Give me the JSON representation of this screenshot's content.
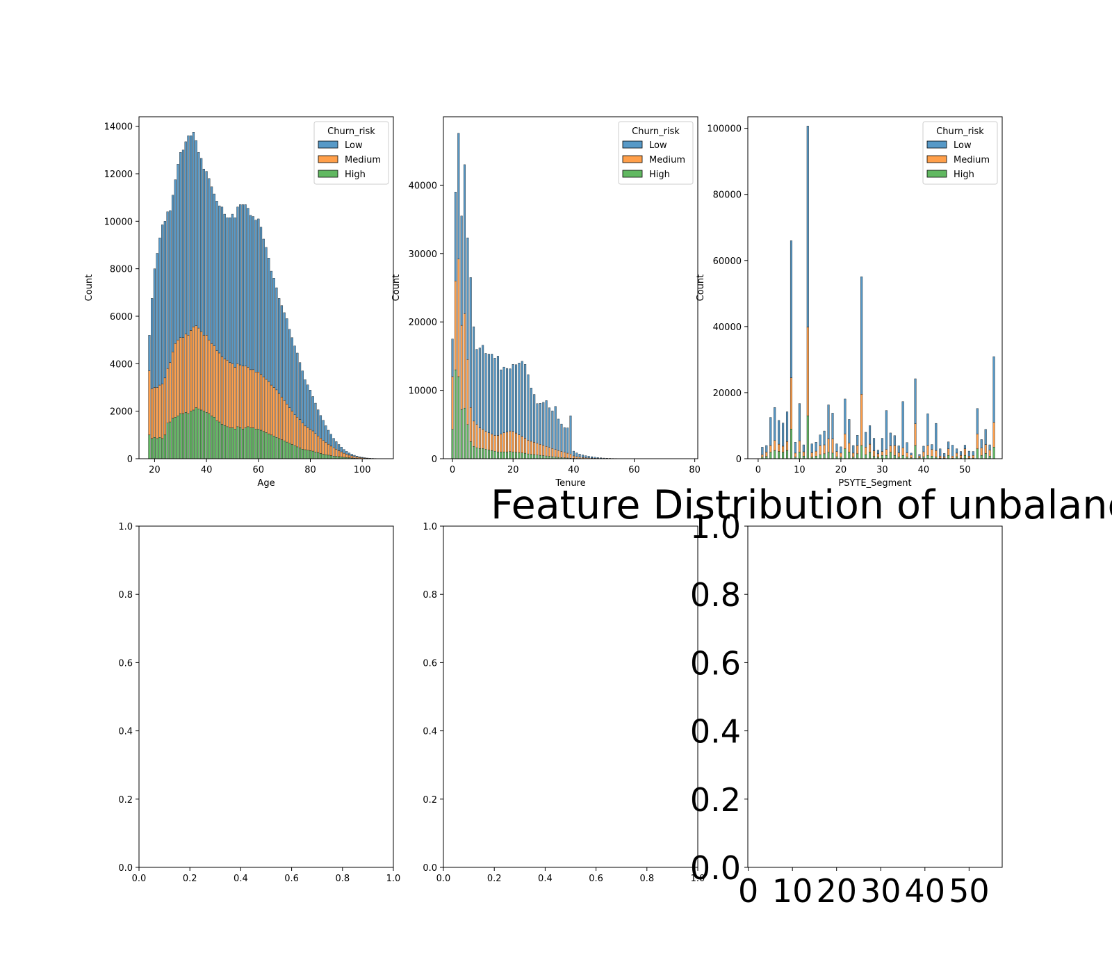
{
  "figure": {
    "suptitle": "Feature Distribution of unbalanc"
  },
  "colors": {
    "Low": "#1f77b4",
    "Medium": "#ff7f0e",
    "High": "#2ca02c"
  },
  "chart_data": [
    {
      "type": "bar",
      "stacked": true,
      "xlabel": "Age",
      "ylabel": "Count",
      "xlim": [
        14,
        112
      ],
      "ylim": [
        0,
        14400
      ],
      "xticks": [
        20,
        40,
        60,
        80,
        100
      ],
      "yticks": [
        0,
        2000,
        4000,
        6000,
        8000,
        10000,
        12000,
        14000
      ],
      "legend": {
        "title": "Churn_risk",
        "entries": [
          "Low",
          "Medium",
          "High"
        ],
        "placement": "upper right"
      },
      "bar_width": 0.75,
      "x": [
        18,
        19,
        20,
        21,
        22,
        23,
        24,
        25,
        26,
        27,
        28,
        29,
        30,
        31,
        32,
        33,
        34,
        35,
        36,
        37,
        38,
        39,
        40,
        41,
        42,
        43,
        44,
        45,
        46,
        47,
        48,
        49,
        50,
        51,
        52,
        53,
        54,
        55,
        56,
        57,
        58,
        59,
        60,
        61,
        62,
        63,
        64,
        65,
        66,
        67,
        68,
        69,
        70,
        71,
        72,
        73,
        74,
        75,
        76,
        77,
        78,
        79,
        80,
        81,
        82,
        83,
        84,
        85,
        86,
        87,
        88,
        89,
        90,
        91,
        92,
        93,
        94,
        95,
        96,
        97,
        98,
        99,
        100,
        101,
        102,
        103,
        104,
        105,
        106,
        107,
        108
      ],
      "series": [
        {
          "name": "High",
          "values": [
            1000,
            850,
            900,
            850,
            900,
            850,
            1000,
            1500,
            1550,
            1700,
            1750,
            1800,
            1900,
            1900,
            1950,
            1900,
            2000,
            2050,
            2150,
            2100,
            2050,
            2000,
            1950,
            1900,
            1800,
            1750,
            1600,
            1550,
            1450,
            1400,
            1350,
            1300,
            1300,
            1250,
            1350,
            1300,
            1250,
            1300,
            1350,
            1300,
            1300,
            1250,
            1250,
            1200,
            1150,
            1100,
            1050,
            1000,
            950,
            900,
            850,
            800,
            750,
            700,
            650,
            600,
            550,
            500,
            450,
            400,
            380,
            360,
            340,
            320,
            280,
            260,
            220,
            190,
            170,
            150,
            130,
            110,
            100,
            90,
            80,
            60,
            50,
            40,
            30,
            20,
            15,
            10,
            8,
            5,
            4,
            3,
            2,
            2,
            1,
            1,
            1
          ]
        },
        {
          "name": "Medium",
          "values": [
            2700,
            2100,
            2100,
            2150,
            2200,
            2300,
            2400,
            2300,
            2500,
            2800,
            3100,
            3200,
            3200,
            3200,
            3300,
            3300,
            3400,
            3500,
            3450,
            3400,
            3300,
            3200,
            3250,
            3100,
            3050,
            3000,
            2950,
            2900,
            2850,
            2800,
            2800,
            2750,
            2700,
            2600,
            2650,
            2650,
            2650,
            2600,
            2500,
            2450,
            2450,
            2400,
            2400,
            2350,
            2300,
            2250,
            2200,
            2100,
            2050,
            2000,
            1900,
            1800,
            1700,
            1600,
            1500,
            1400,
            1300,
            1250,
            1200,
            1100,
            1000,
            950,
            900,
            850,
            780,
            700,
            650,
            580,
            520,
            460,
            400,
            350,
            300,
            250,
            210,
            170,
            140,
            110,
            90,
            70,
            55,
            40,
            30,
            22,
            15,
            10,
            8,
            6,
            4,
            3,
            2
          ]
        },
        {
          "name": "Low",
          "values": [
            1500,
            3800,
            5000,
            5650,
            6200,
            6700,
            6600,
            6600,
            6400,
            6600,
            6900,
            7400,
            7800,
            7900,
            8100,
            8400,
            8200,
            8200,
            7800,
            7400,
            7300,
            7000,
            6900,
            6800,
            6600,
            6400,
            6300,
            6200,
            6300,
            6100,
            6000,
            6100,
            6300,
            6300,
            6600,
            6750,
            6800,
            6800,
            6700,
            6500,
            6450,
            6400,
            6450,
            6200,
            5800,
            5550,
            5200,
            4800,
            4600,
            4300,
            4000,
            3850,
            3700,
            3600,
            3300,
            3100,
            2900,
            2700,
            2400,
            2200,
            1950,
            1800,
            1650,
            1450,
            1280,
            1100,
            950,
            850,
            700,
            590,
            500,
            400,
            320,
            260,
            200,
            160,
            120,
            90,
            70,
            55,
            40,
            30,
            22,
            15,
            10,
            7,
            5,
            3,
            2,
            1,
            1
          ]
        }
      ]
    },
    {
      "type": "bar",
      "stacked": true,
      "xlabel": "Tenure",
      "ylabel": "Count",
      "xlim": [
        -3,
        81
      ],
      "ylim": [
        0,
        50000
      ],
      "xticks": [
        0,
        20,
        40,
        60,
        80
      ],
      "yticks": [
        0,
        10000,
        20000,
        30000,
        40000
      ],
      "legend": {
        "title": "Churn_risk",
        "entries": [
          "Low",
          "Medium",
          "High"
        ],
        "placement": "upper right"
      },
      "bar_width": 0.6,
      "x": [
        0,
        1,
        2,
        3,
        4,
        5,
        6,
        7,
        8,
        9,
        10,
        11,
        12,
        13,
        14,
        15,
        16,
        17,
        18,
        19,
        20,
        21,
        22,
        23,
        24,
        25,
        26,
        27,
        28,
        29,
        30,
        31,
        32,
        33,
        34,
        35,
        36,
        37,
        38,
        39,
        40,
        41,
        42,
        43,
        44,
        45,
        46,
        47,
        48,
        49,
        50,
        51,
        52,
        53,
        54,
        55,
        56,
        57,
        58,
        59,
        60,
        61,
        62,
        63,
        64,
        65,
        66,
        67,
        68,
        69,
        70,
        71,
        72,
        73,
        74,
        75,
        76,
        77,
        78
      ],
      "series": [
        {
          "name": "High",
          "values": [
            4300,
            13000,
            12000,
            7200,
            7400,
            5000,
            2500,
            1800,
            1600,
            1500,
            1500,
            1400,
            1300,
            1200,
            1100,
            1000,
            1000,
            1000,
            1000,
            1050,
            1000,
            950,
            900,
            850,
            800,
            700,
            650,
            600,
            550,
            500,
            450,
            400,
            350,
            300,
            250,
            200,
            170,
            140,
            110,
            80,
            60,
            50,
            40,
            30,
            25,
            20,
            15,
            12,
            10,
            8,
            6,
            5,
            4,
            3,
            3,
            2,
            2,
            2,
            1,
            1,
            1,
            1,
            1,
            1,
            1,
            1,
            1,
            1,
            1,
            1,
            1,
            1,
            1,
            1,
            1,
            1,
            1,
            1,
            1
          ]
        },
        {
          "name": "Medium",
          "values": [
            7700,
            13000,
            17200,
            12300,
            13800,
            9500,
            5000,
            3700,
            3400,
            3000,
            2800,
            2600,
            2500,
            2400,
            2300,
            2400,
            2600,
            2800,
            2900,
            3000,
            3000,
            2800,
            2600,
            2400,
            2200,
            2000,
            1900,
            1800,
            1700,
            1600,
            1500,
            1400,
            1300,
            1200,
            1100,
            1000,
            900,
            800,
            700,
            600,
            350,
            250,
            200,
            150,
            120,
            100,
            80,
            60,
            50,
            40,
            30,
            25,
            20,
            15,
            12,
            10,
            8,
            6,
            5,
            4,
            3,
            3,
            2,
            2,
            2,
            1,
            1,
            1,
            1,
            1,
            1,
            1,
            1,
            1,
            1,
            1,
            1,
            1,
            1
          ]
        },
        {
          "name": "Low",
          "values": [
            5500,
            13000,
            18400,
            16000,
            21800,
            17800,
            19000,
            13800,
            11000,
            11700,
            12300,
            11400,
            11500,
            11700,
            11300,
            11600,
            9400,
            9600,
            9300,
            9100,
            9800,
            10000,
            10500,
            11000,
            10800,
            9600,
            7800,
            7000,
            5800,
            6000,
            6300,
            6700,
            5800,
            5500,
            6300,
            4600,
            4000,
            3600,
            3700,
            5600,
            700,
            550,
            450,
            370,
            300,
            250,
            200,
            150,
            110,
            80,
            60,
            45,
            35,
            25,
            20,
            15,
            12,
            10,
            8,
            6,
            5,
            4,
            3,
            3,
            2,
            2,
            2,
            1,
            1,
            1,
            1,
            1,
            1,
            1,
            1,
            1,
            1,
            1,
            1
          ]
        }
      ]
    },
    {
      "type": "bar",
      "stacked": true,
      "xlabel": "PSYTE_Segment",
      "ylabel": "Count",
      "xlim": [
        -2.5,
        59
      ],
      "ylim": [
        0,
        103500
      ],
      "xticks": [
        0,
        10,
        20,
        30,
        40,
        50
      ],
      "yticks": [
        0,
        20000,
        40000,
        60000,
        80000,
        100000
      ],
      "legend": {
        "title": "Churn_risk",
        "entries": [
          "Low",
          "Medium",
          "High"
        ],
        "placement": "upper right"
      },
      "bar_width": 0.45,
      "x": [
        1,
        2,
        3,
        4,
        5,
        6,
        7,
        8,
        9,
        10,
        11,
        12,
        13,
        14,
        15,
        16,
        17,
        18,
        19,
        20,
        21,
        22,
        23,
        24,
        25,
        26,
        27,
        28,
        29,
        30,
        31,
        32,
        33,
        34,
        35,
        36,
        37,
        38,
        39,
        40,
        41,
        42,
        43,
        44,
        45,
        46,
        47,
        48,
        49,
        50,
        51,
        52,
        53,
        54,
        55,
        56,
        57
      ],
      "series": [
        {
          "name": "High",
          "values": [
            500,
            700,
            2000,
            2500,
            2200,
            2000,
            2500,
            9000,
            500,
            2000,
            800,
            13000,
            500,
            800,
            1200,
            1500,
            2000,
            1700,
            600,
            500,
            3000,
            2000,
            500,
            1500,
            4000,
            1200,
            2000,
            700,
            500,
            1000,
            1000,
            2000,
            1000,
            500,
            1000,
            500,
            300,
            4000,
            300,
            600,
            1000,
            800,
            500,
            200,
            200,
            1000,
            200,
            600,
            200,
            1000,
            200,
            200,
            3000,
            1000,
            1600,
            800,
            3500
          ]
        },
        {
          "name": "Medium",
          "values": [
            700,
            1300,
            2000,
            3000,
            2200,
            1800,
            2700,
            15500,
            1200,
            3400,
            1300,
            26800,
            1300,
            1500,
            2800,
            2700,
            4000,
            4300,
            1600,
            1200,
            4500,
            2800,
            1200,
            2500,
            15500,
            2300,
            2400,
            1700,
            1000,
            1200,
            1800,
            1900,
            3000,
            1300,
            2300,
            1300,
            800,
            6600,
            500,
            1500,
            3000,
            2000,
            2000,
            600,
            400,
            2000,
            600,
            1100,
            800,
            2000,
            600,
            800,
            4500,
            2200,
            2700,
            1800,
            7500
          ]
        },
        {
          "name": "Low",
          "values": [
            2300,
            2000,
            8500,
            10000,
            7200,
            7000,
            9000,
            41500,
            3300,
            11300,
            2100,
            60900,
            2700,
            2700,
            3200,
            4200,
            10300,
            7800,
            2300,
            1900,
            10600,
            7100,
            2300,
            3100,
            35600,
            4500,
            5600,
            3800,
            1100,
            4000,
            11800,
            3900,
            3000,
            2100,
            14000,
            3100,
            600,
            13600,
            500,
            1700,
            9600,
            1500,
            8200,
            2200,
            1000,
            2100,
            3300,
            1300,
            1200,
            1100,
            1500,
            1200,
            7700,
            2600,
            4600,
            1600,
            19900
          ]
        }
      ]
    }
  ],
  "empty_axes": [
    {
      "xticks": [
        "0.0",
        "0.2",
        "0.4",
        "0.6",
        "0.8",
        "1.0"
      ],
      "yticks": [
        "0.0",
        "0.2",
        "0.4",
        "0.6",
        "0.8",
        "1.0"
      ]
    },
    {
      "xticks": [
        "0.0",
        "0.2",
        "0.4",
        "0.6",
        "0.8",
        "1.0"
      ],
      "yticks": [
        "0.0",
        "0.2",
        "0.4",
        "0.6",
        "0.8",
        "1.0"
      ]
    },
    {
      "xticks": [
        "0",
        "10",
        "20",
        "30",
        "40",
        "50"
      ],
      "yticks": [
        "0.0",
        "0.2",
        "0.4",
        "0.6",
        "0.8",
        "1.0"
      ]
    }
  ]
}
